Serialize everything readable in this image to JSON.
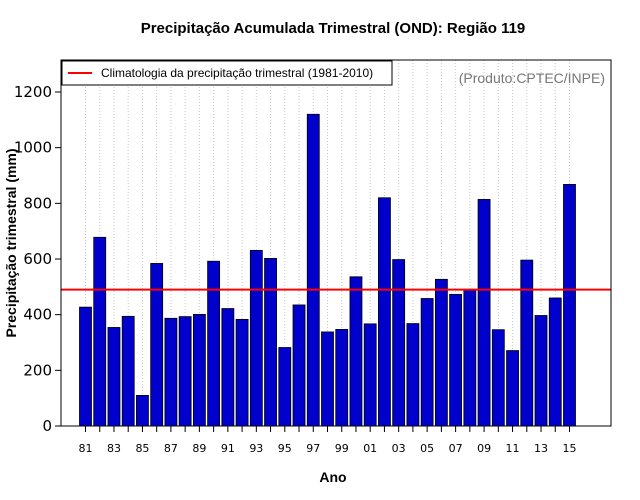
{
  "chart_data": {
    "type": "bar",
    "title": "Precipitação Acumulada Trimestral (OND): Região 119",
    "xlabel": "Ano",
    "ylabel": "Precipitação trimestral (mm)",
    "ylim": [
      0,
      1300
    ],
    "yticks": [
      0,
      200,
      400,
      600,
      800,
      1000,
      1200
    ],
    "grid": "vertical dotted",
    "categories": [
      "81",
      "82",
      "83",
      "84",
      "85",
      "86",
      "87",
      "88",
      "89",
      "90",
      "91",
      "92",
      "93",
      "94",
      "95",
      "96",
      "97",
      "98",
      "99",
      "00",
      "01",
      "02",
      "03",
      "04",
      "05",
      "06",
      "07",
      "08",
      "09",
      "10",
      "11",
      "12",
      "13",
      "14",
      "15"
    ],
    "xtick_labels": [
      "81",
      "83",
      "85",
      "87",
      "89",
      "91",
      "93",
      "95",
      "97",
      "99",
      "01",
      "03",
      "05",
      "07",
      "09",
      "11",
      "13",
      "15"
    ],
    "values": [
      427,
      678,
      354,
      394,
      110,
      584,
      387,
      393,
      401,
      592,
      422,
      383,
      631,
      602,
      282,
      435,
      1120,
      338,
      347,
      536,
      367,
      820,
      598,
      368,
      458,
      527,
      473,
      490,
      814,
      346,
      271,
      596,
      397,
      460,
      868
    ],
    "bar_color": "#0000CC",
    "climatology": {
      "value": 490,
      "label": "Climatologia da precipitação trimestral (1981-2010)",
      "color": "#FF0000"
    },
    "legend_position": "top-left",
    "annotation": "(Produto:CPTEC/INPE)"
  }
}
